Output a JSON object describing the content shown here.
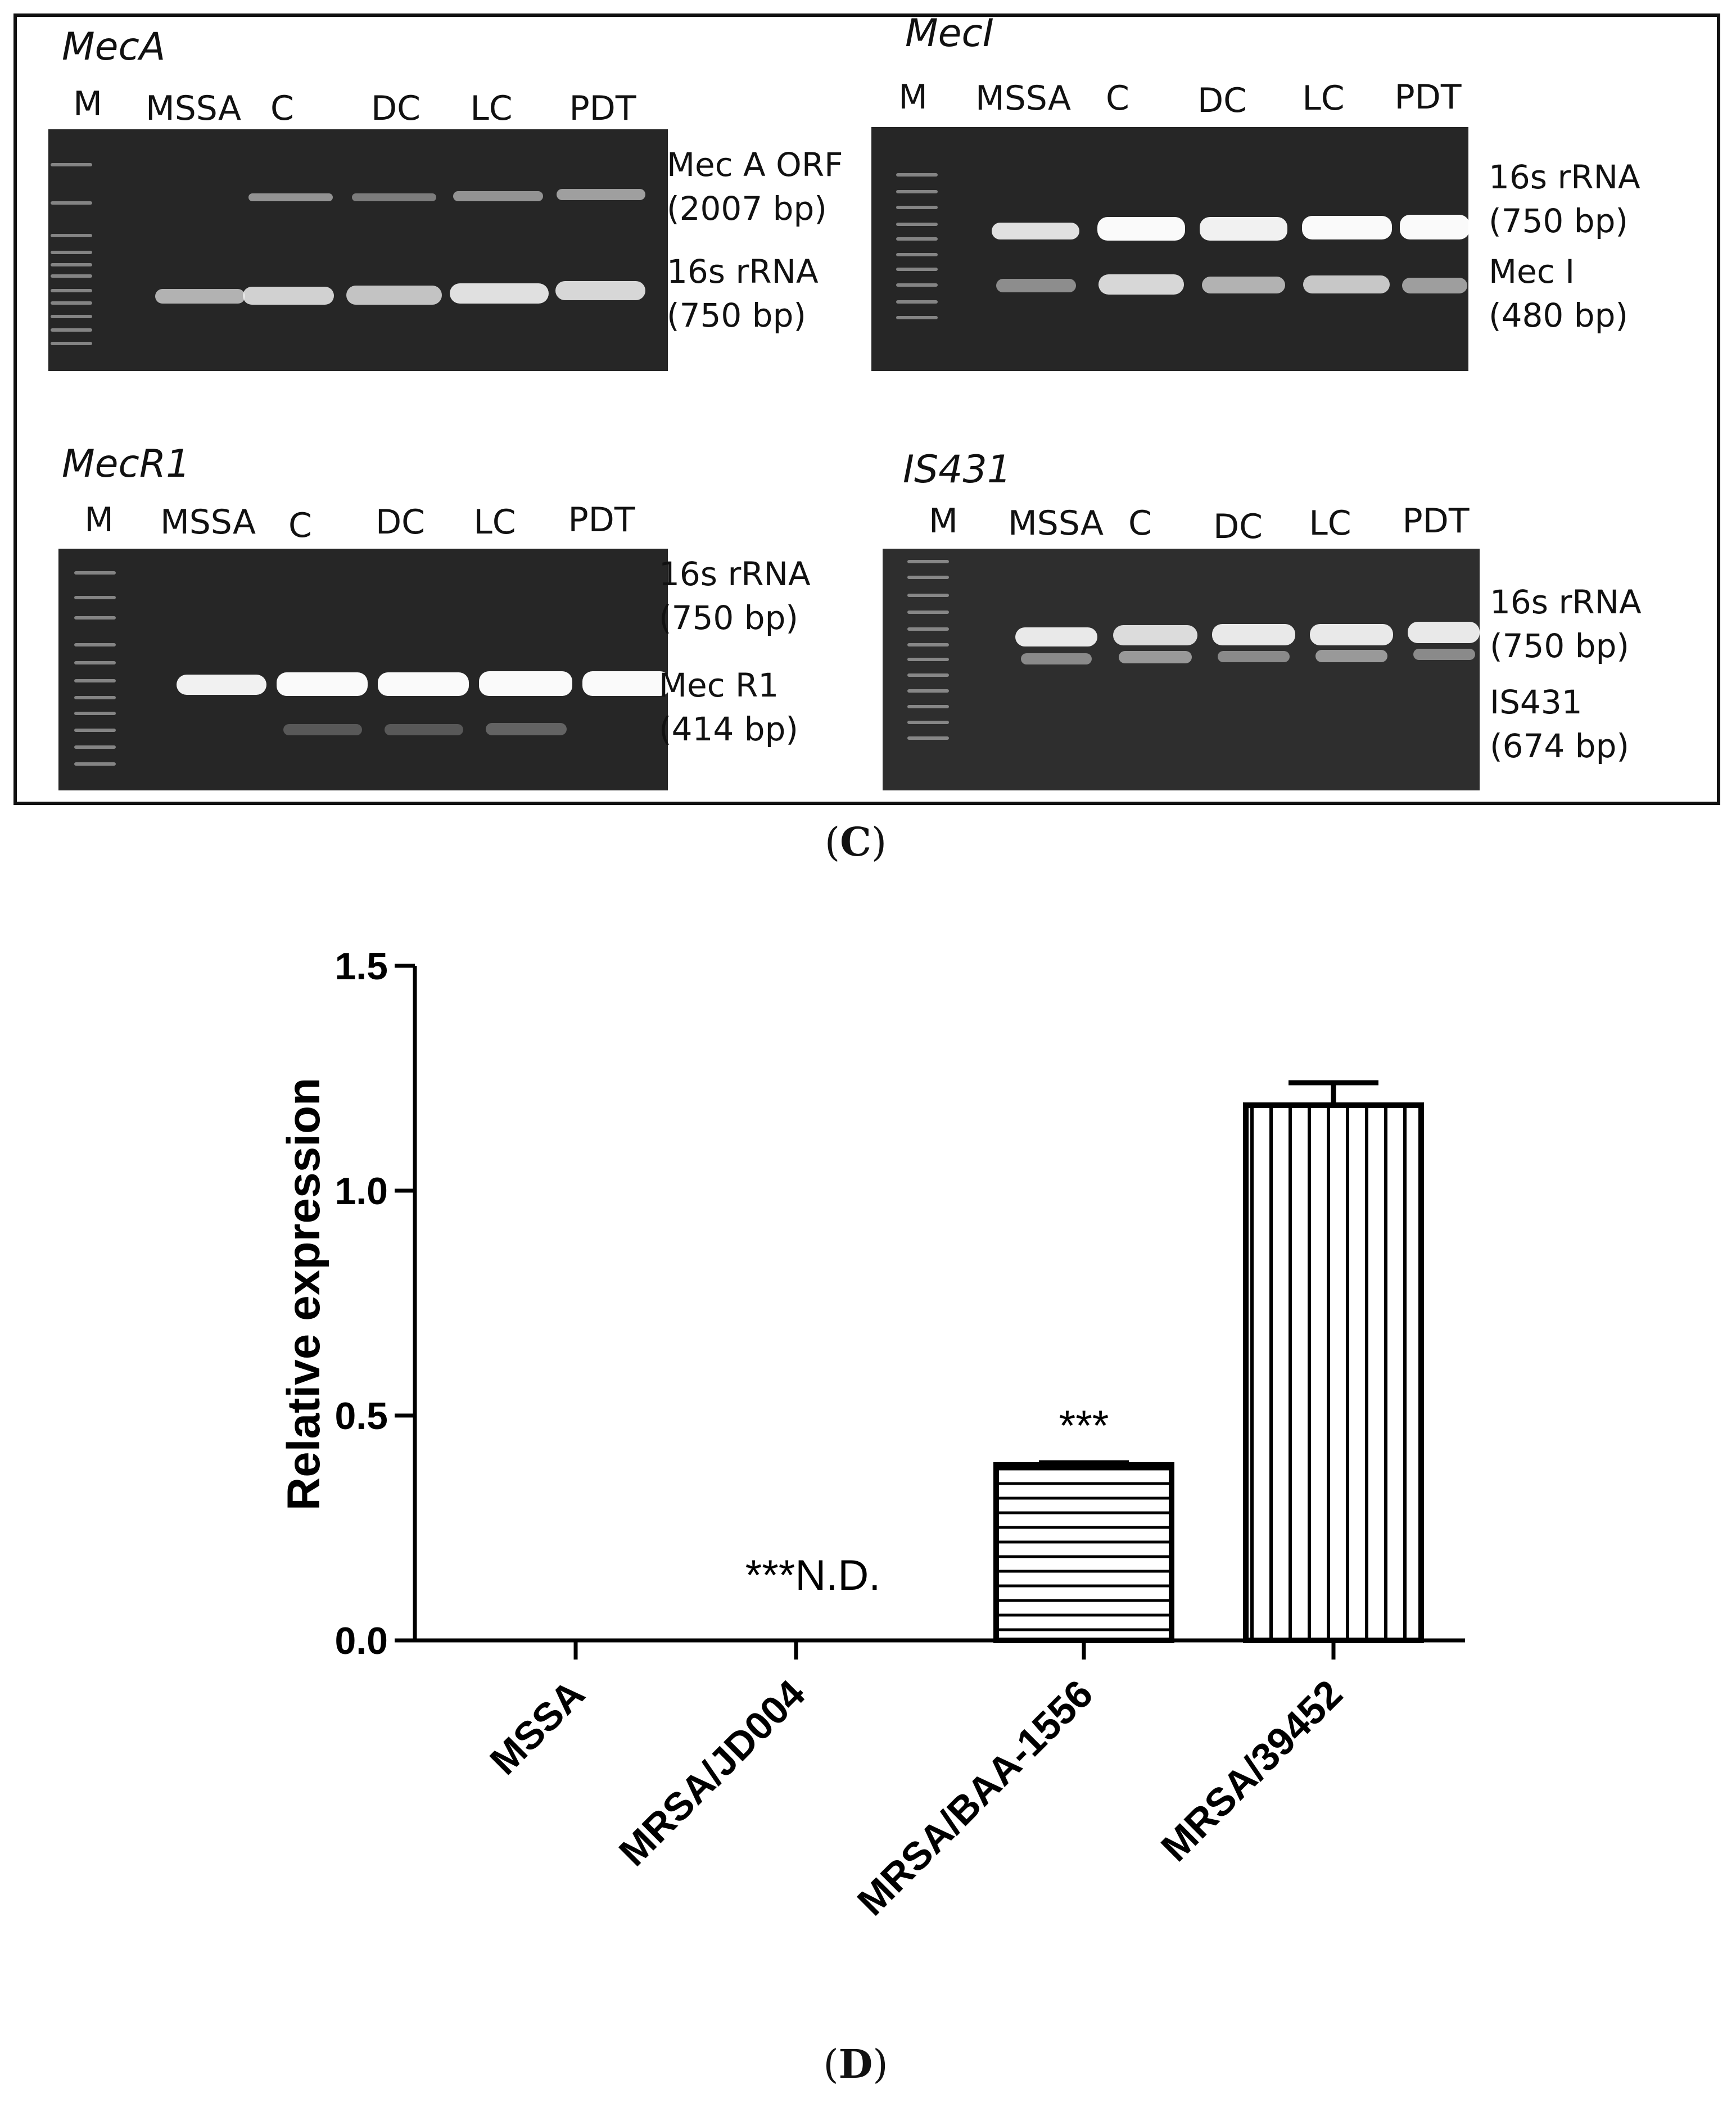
{
  "panel_c": {
    "letter": "C",
    "gels": [
      {
        "id": "meca",
        "title": "MecA",
        "lanes": [
          "M",
          "MSSA",
          "C",
          "DC",
          "LC",
          "PDT"
        ],
        "markers": [
          {
            "label": "Mec A ORF",
            "size": "(2007 bp)"
          },
          {
            "label": "16s rRNA",
            "size": "(750 bp)"
          }
        ]
      },
      {
        "id": "meci",
        "title": "MecI",
        "lanes": [
          "M",
          "MSSA",
          "C",
          "DC",
          "LC",
          "PDT"
        ],
        "markers": [
          {
            "label": "16s rRNA",
            "size": "(750 bp)"
          },
          {
            "label": "Mec I",
            "size": "(480 bp)"
          }
        ]
      },
      {
        "id": "mecr1",
        "title": "MecR1",
        "lanes": [
          "M",
          "MSSA",
          "C",
          "DC",
          "LC",
          "PDT"
        ],
        "markers": [
          {
            "label": "16s rRNA",
            "size": "(750 bp)"
          },
          {
            "label": "Mec R1",
            "size": "(414 bp)"
          }
        ]
      },
      {
        "id": "is431",
        "title": "IS431",
        "lanes": [
          "M",
          "MSSA",
          "C",
          "DC",
          "LC",
          "PDT"
        ],
        "markers": [
          {
            "label": "16s rRNA",
            "size": "(750 bp)"
          },
          {
            "label": "IS431",
            "size": "(674 bp)"
          }
        ]
      }
    ]
  },
  "panel_d": {
    "letter": "D"
  },
  "chart_data": {
    "type": "bar",
    "categories": [
      "MSSA",
      "MRSA/JD004",
      "MRSA/BAA-1556",
      "MRSA/39452"
    ],
    "values": [
      0,
      0,
      0.39,
      1.19
    ],
    "errors": [
      0,
      0,
      0.005,
      0.05
    ],
    "annotations": [
      "",
      "***N.D.",
      "***",
      ""
    ],
    "title": "",
    "xlabel": "",
    "ylabel": "Relative expression",
    "ylim": [
      0,
      1.5
    ],
    "yticks": [
      "0.0",
      "0.5",
      "1.0",
      "1.5"
    ],
    "bar_patterns": [
      "none",
      "none",
      "horizontal-lines",
      "vertical-lines"
    ],
    "bar_color": "#000000"
  }
}
